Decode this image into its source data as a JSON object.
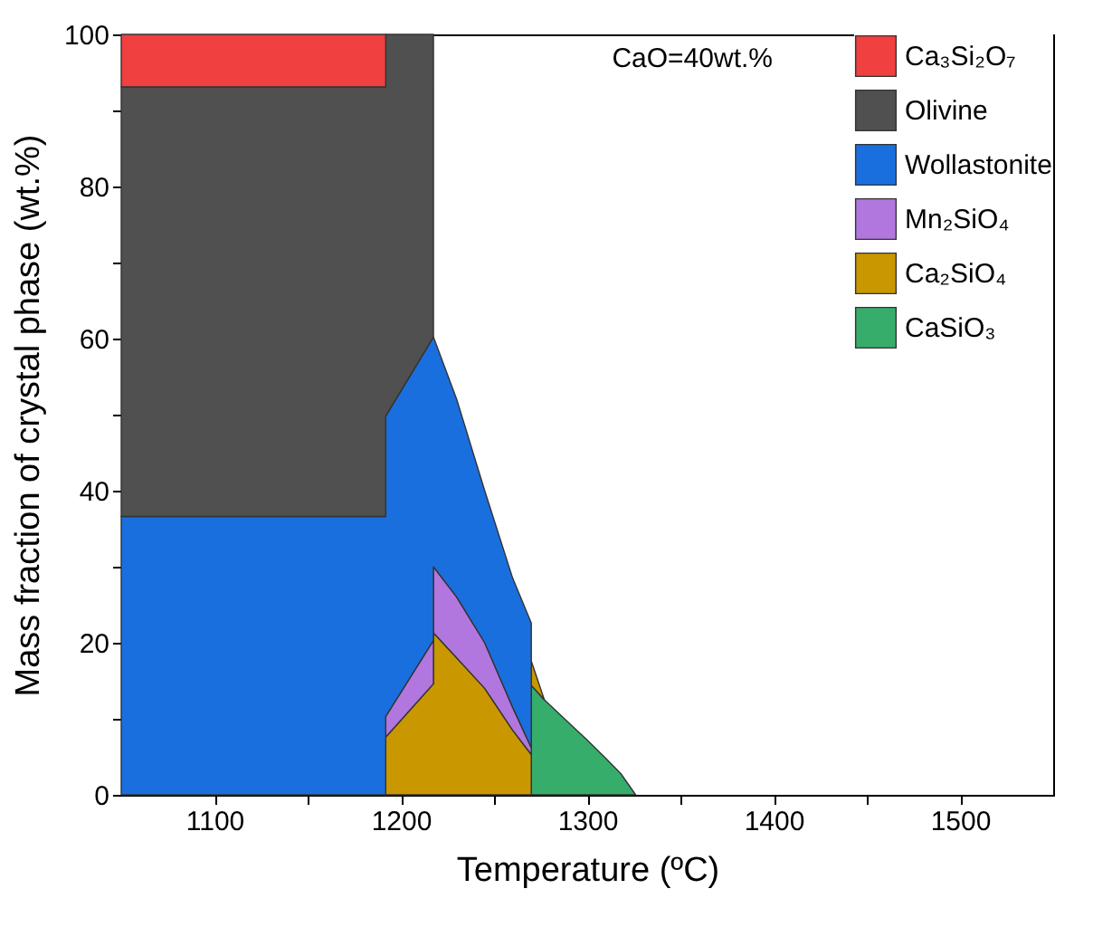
{
  "chart_data": {
    "type": "area",
    "stacked": true,
    "xlabel": "Temperature (ºC)",
    "ylabel": "Mass fraction of crystal phase (wt.%)",
    "x": [
      1050,
      1191.9,
      1191.9,
      1217.5,
      1217.5,
      1230,
      1245,
      1260,
      1270,
      1270,
      1277,
      1290,
      1300,
      1310,
      1318,
      1326
    ],
    "series": [
      {
        "name": "CaSiO₃",
        "color": "#37ad6b",
        "values": [
          null,
          null,
          null,
          null,
          null,
          null,
          null,
          null,
          null,
          14.4,
          12.5,
          9.5,
          7.2,
          4.8,
          2.8,
          0
        ]
      },
      {
        "name": "Ca₂SiO₄",
        "color": "#c99700",
        "values": [
          null,
          null,
          7.6,
          14.6,
          21.3,
          18,
          14,
          8.5,
          5.3,
          3.2,
          0,
          null,
          null,
          null,
          null,
          null
        ]
      },
      {
        "name": "Mn₂SiO₄",
        "color": "#b177de",
        "values": [
          null,
          null,
          2.7,
          5.7,
          8.7,
          8,
          6,
          3,
          0.9,
          null,
          null,
          null,
          null,
          null,
          null,
          null
        ]
      },
      {
        "name": "Wollastonite",
        "color": "#1a6fdf",
        "values": [
          36.6,
          36.6,
          39.5,
          39.9,
          30.2,
          26,
          20,
          17,
          16.4,
          null,
          null,
          null,
          null,
          null,
          null,
          null
        ]
      },
      {
        "name": "Olivine",
        "color": "#505050",
        "values": [
          56.5,
          56.5,
          50.2,
          39.8,
          null,
          null,
          null,
          null,
          null,
          null,
          null,
          null,
          null,
          null,
          null,
          null
        ]
      },
      {
        "name": "Ca₃Si₂O₇",
        "color": "#f04040",
        "values": [
          6.9,
          6.9,
          null,
          null,
          null,
          null,
          null,
          null,
          null,
          null,
          null,
          null,
          null,
          null,
          null,
          null
        ]
      }
    ],
    "xlim": [
      1050,
      1550
    ],
    "xticks": [
      1100,
      {
        "value": 1150,
        "label": null
      },
      1200,
      {
        "value": 1250,
        "label": null
      },
      1300,
      {
        "value": 1350,
        "label": null
      },
      1400,
      {
        "value": 1450,
        "label": null
      },
      1500
    ],
    "ylim": [
      0,
      100
    ],
    "yticks": [
      0,
      {
        "value": 10,
        "label": null
      },
      20,
      {
        "value": 30,
        "label": null
      },
      40,
      {
        "value": 50,
        "label": null
      },
      60,
      {
        "value": 70,
        "label": null
      },
      80,
      {
        "value": 90,
        "label": null
      },
      100
    ],
    "annotations": [
      "CaO=40wt.%"
    ],
    "legend": "top right",
    "grid": false
  }
}
